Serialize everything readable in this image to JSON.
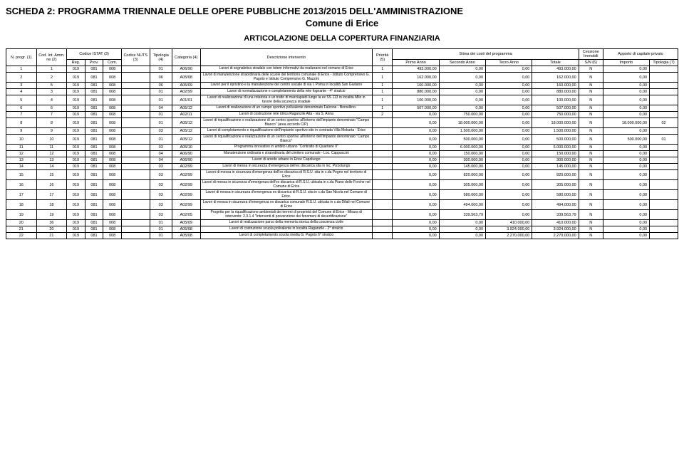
{
  "header": {
    "title1": "SCHEDA 2: PROGRAMMA TRIENNALE DELLE OPERE PUBBLICHE 2013/2015 DELL'AMMINISTRAZIONE",
    "title2": "Comune di Erice",
    "subtitle": "ARTICOLAZIONE DELLA COPERTURA FINANZIARIA"
  },
  "columns": {
    "nprogr": "N. progr. (1)",
    "codint": "Cod. Int. Amm. ne (2)",
    "istat": "Codice ISTAT (3)",
    "reg": "Reg.",
    "prov": "Prov.",
    "com": "Com.",
    "nuts": "Codice NUTS (3)",
    "tipologia": "Tipologia (4)",
    "categoria": "Categoria (4)",
    "descr": "Descrizione intervento",
    "priorita": "Priorità (5)",
    "stima": "Stima dei costi del programma",
    "primo": "Primo Anno",
    "secondo": "Secondo Anno",
    "terzo": "Terzo Anno",
    "totale": "Totale",
    "cessione": "Cessione Immobili",
    "sn": "S/N (6)",
    "apporto": "Apporto di capitale privato",
    "importo": "Importo",
    "tipfin": "Tipologia (7)"
  },
  "rows": [
    {
      "n": "1",
      "cod": "1",
      "reg": "019",
      "prov": "081",
      "com": "008",
      "nuts": "",
      "tip": "01",
      "cat": "A06/90",
      "desc": "Lavori di segnaletica stradale con totem informativi da realizzarsi nel comune di Erice",
      "pri": "1",
      "a1": "493.000,00",
      "a2": "0,00",
      "a3": "0,00",
      "tot": "493.000,00",
      "ces": "N",
      "imp": "0,00",
      "tf": ""
    },
    {
      "n": "2",
      "cod": "2",
      "reg": "019",
      "prov": "081",
      "com": "008",
      "nuts": "",
      "tip": "06",
      "cat": "A05/08",
      "desc": "Lavori di manutenzione straordinaria delle scuole del territorio comunale di Erice - Istituto Comprensivo G. Pagoto e Istituto Comprensivo G. Mazzini",
      "pri": "1",
      "a1": "162.000,00",
      "a2": "0,00",
      "a3": "0,00",
      "tot": "162.000,00",
      "ces": "N",
      "imp": "0,00",
      "tf": ""
    },
    {
      "n": "3",
      "cod": "5",
      "reg": "019",
      "prov": "081",
      "com": "008",
      "nuts": "",
      "tip": "06",
      "cat": "A05/09",
      "desc": "Lavori per il ripristino e la manutenzione del centro sociale di via I. Poma in località San Giuliano",
      "pri": "1",
      "a1": "160.000,00",
      "a2": "0,00",
      "a3": "0,00",
      "tot": "160.000,00",
      "ces": "N",
      "imp": "0,00",
      "tf": ""
    },
    {
      "n": "4",
      "cod": "3",
      "reg": "019",
      "prov": "081",
      "com": "008",
      "nuts": "",
      "tip": "01",
      "cat": "A02/99",
      "desc": "Lavori di normalizzazione e completamento della rete fognante - 4° stralcio",
      "pri": "1",
      "a1": "880.000,00",
      "a2": "0,00",
      "a3": "0,00",
      "tot": "880.000,00",
      "ces": "N",
      "imp": "0,00",
      "tf": ""
    },
    {
      "n": "5",
      "cod": "4",
      "reg": "019",
      "prov": "081",
      "com": "008",
      "nuts": "",
      "tip": "01",
      "cat": "A01/01",
      "desc": "Lavori di realizzazione di una rotatoria e un tratto di marciapiedi lungo la ex SS 113 in località Milo in favore della sicurezza stradale",
      "pri": "1",
      "a1": "100.000,00",
      "a2": "0,00",
      "a3": "0,00",
      "tot": "100.000,00",
      "ces": "N",
      "imp": "0,00",
      "tf": ""
    },
    {
      "n": "6",
      "cod": "6",
      "reg": "019",
      "prov": "081",
      "com": "008",
      "nuts": "",
      "tip": "04",
      "cat": "A05/12",
      "desc": "Lavori di realizzazione di un campo sportivo polivalente denominato Falcone - Borsellino.",
      "pri": "1",
      "a1": "507.000,00",
      "a2": "0,00",
      "a3": "0,00",
      "tot": "507.000,00",
      "ces": "N",
      "imp": "0,00",
      "tf": ""
    },
    {
      "n": "7",
      "cod": "7",
      "reg": "019",
      "prov": "081",
      "com": "008",
      "nuts": "",
      "tip": "01",
      "cat": "A02/11",
      "desc": "Lavori di costruzione rete idrica Raganzile Alta - via S. Anna",
      "pri": "2",
      "a1": "0,00",
      "a2": "750.000,00",
      "a3": "0,00",
      "tot": "750.000,00",
      "ces": "N",
      "imp": "0,00",
      "tf": ""
    },
    {
      "n": "8",
      "cod": "8",
      "reg": "019",
      "prov": "081",
      "com": "008",
      "nuts": "",
      "tip": "01",
      "cat": "A05/12",
      "desc": "Lavori di riqualificazione e realizzazione di un centro sportivo all'interno dell'impianto denominato \"Campo Bianco\" (area accordo CIP)",
      "pri": "",
      "a1": "0,00",
      "a2": "18.000.000,00",
      "a3": "0,00",
      "tot": "18.000.000,00",
      "ces": "N",
      "imp": "18.000.000,00",
      "tf": "02"
    },
    {
      "n": "9",
      "cod": "9",
      "reg": "019",
      "prov": "081",
      "com": "008",
      "nuts": "",
      "tip": "03",
      "cat": "A05/12",
      "desc": "Lavori di completamento e riqualificazione dell'impianto sportivo sito in contrada Villa Mokarta - Erice",
      "pri": "",
      "a1": "0,00",
      "a2": "1.500.000,00",
      "a3": "0,00",
      "tot": "1.500.000,00",
      "ces": "N",
      "imp": "0,00",
      "tf": ""
    },
    {
      "n": "10",
      "cod": "10",
      "reg": "019",
      "prov": "081",
      "com": "008",
      "nuts": "",
      "tip": "01",
      "cat": "A05/12",
      "desc": "Lavori di riqualificazione e realizzazione di un centro sportivo all'interno dell'impianto denominato \"Campo Bianco\"",
      "pri": "",
      "a1": "0,00",
      "a2": "500.000,00",
      "a3": "0,00",
      "tot": "500.000,00",
      "ces": "N",
      "imp": "500.000,00",
      "tf": "01"
    },
    {
      "n": "11",
      "cod": "11",
      "reg": "019",
      "prov": "081",
      "com": "008",
      "nuts": "",
      "tip": "03",
      "cat": "A05/10",
      "desc": "Programma innovativo in ambito urbano \"Contratto di Quartiere II\"",
      "pri": "",
      "a1": "0,00",
      "a2": "6.000.000,00",
      "a3": "0,00",
      "tot": "6.000.000,00",
      "ces": "N",
      "imp": "0,00",
      "tf": ""
    },
    {
      "n": "12",
      "cod": "12",
      "reg": "019",
      "prov": "081",
      "com": "008",
      "nuts": "",
      "tip": "04",
      "cat": "A06/90",
      "desc": "Manutenzione ordinaria e straordinaria del cimitero comunale - Loc. Cappuccini",
      "pri": "",
      "a1": "0,00",
      "a2": "150.000,00",
      "a3": "0,00",
      "tot": "150.000,00",
      "ces": "N",
      "imp": "0,00",
      "tf": ""
    },
    {
      "n": "13",
      "cod": "13",
      "reg": "019",
      "prov": "081",
      "com": "008",
      "nuts": "",
      "tip": "04",
      "cat": "A06/90",
      "desc": "Lavori di arredo urbano in Erice Capoluogo",
      "pri": "",
      "a1": "0,00",
      "a2": "300.000,00",
      "a3": "0,00",
      "tot": "300.000,00",
      "ces": "N",
      "imp": "0,00",
      "tf": ""
    },
    {
      "n": "14",
      "cod": "14",
      "reg": "019",
      "prov": "081",
      "com": "008",
      "nuts": "",
      "tip": "03",
      "cat": "A02/99",
      "desc": "Lavori di messa in sicurezza d'emergenza dell'ex discarica sita in loc. Pizzolungo",
      "pri": "",
      "a1": "0,00",
      "a2": "145.000,00",
      "a3": "0,00",
      "tot": "145.000,00",
      "ces": "N",
      "imp": "0,00",
      "tf": ""
    },
    {
      "n": "15",
      "cod": "15",
      "reg": "019",
      "prov": "081",
      "com": "008",
      "nuts": "",
      "tip": "03",
      "cat": "A02/99",
      "desc": "Lavori di messa in sicurezza d'emergenza dell'ex discarica di R.S.U. sita in c.da Pegno nel territorio di Erice",
      "pri": "",
      "a1": "0,00",
      "a2": "820.000,00",
      "a3": "0,00",
      "tot": "820.000,00",
      "ces": "N",
      "imp": "0,00",
      "tf": ""
    },
    {
      "n": "16",
      "cod": "16",
      "reg": "019",
      "prov": "081",
      "com": "008",
      "nuts": "",
      "tip": "03",
      "cat": "A02/99",
      "desc": "Lavori di messa in sicurezza d'emergenza dell'ex discarica di R.S.U. ubicata in c.da Piano delle Forche nel Comune di Erice",
      "pri": "",
      "a1": "0,00",
      "a2": "305.000,00",
      "a3": "0,00",
      "tot": "305.000,00",
      "ces": "N",
      "imp": "0,00",
      "tf": ""
    },
    {
      "n": "17",
      "cod": "17",
      "reg": "019",
      "prov": "081",
      "com": "008",
      "nuts": "",
      "tip": "03",
      "cat": "A02/99",
      "desc": "Lavori di messa in sicurezza d'emergenza ex discarica di R.S.U. sita in c.da San Nicola nel Comune di Erice.",
      "pri": "",
      "a1": "0,00",
      "a2": "580.000,00",
      "a3": "0,00",
      "tot": "580.000,00",
      "ces": "N",
      "imp": "0,00",
      "tf": ""
    },
    {
      "n": "18",
      "cod": "18",
      "reg": "019",
      "prov": "081",
      "com": "008",
      "nuts": "",
      "tip": "03",
      "cat": "A02/99",
      "desc": "Lavori di messa in sicurezza d'emergenza ex discarica comunale R.S.U. ubicata in c.da Difali nel Comune di Erice",
      "pri": "",
      "a1": "0,00",
      "a2": "494.000,00",
      "a3": "0,00",
      "tot": "494.000,00",
      "ces": "N",
      "imp": "0,00",
      "tf": ""
    },
    {
      "n": "19",
      "cod": "19",
      "reg": "019",
      "prov": "081",
      "com": "008",
      "nuts": "",
      "tip": "03",
      "cat": "A02/05",
      "desc": "Progetto per la riqualificazione ambientali dei terreni di proprietà del Comune di Erice - Misura di intervento: 2.3.1.4 \"Interventi di prevenzione dei fenomeni di desertificazione\"",
      "pri": "",
      "a1": "0,00",
      "a2": "339.563,79",
      "a3": "0,00",
      "tot": "339.563,79",
      "ces": "N",
      "imp": "0,00",
      "tf": ""
    },
    {
      "n": "20",
      "cod": "36",
      "reg": "019",
      "prov": "081",
      "com": "008",
      "nuts": "",
      "tip": "01",
      "cat": "A05/09",
      "desc": "Lavori di realizzazione parco della memoria storica della coscienza civile",
      "pri": "",
      "a1": "0,00",
      "a2": "0,00",
      "a3": "410.000,00",
      "tot": "410.000,00",
      "ces": "N",
      "imp": "0,00",
      "tf": ""
    },
    {
      "n": "21",
      "cod": "20",
      "reg": "019",
      "prov": "081",
      "com": "008",
      "nuts": "",
      "tip": "01",
      "cat": "A05/08",
      "desc": "Lavori di costruzione scuola polivalente in località Raganzile - 2° stralcio",
      "pri": "",
      "a1": "0,00",
      "a2": "0,00",
      "a3": "3.924.000,00",
      "tot": "3.924.000,00",
      "ces": "N",
      "imp": "0,00",
      "tf": ""
    },
    {
      "n": "22",
      "cod": "21",
      "reg": "019",
      "prov": "081",
      "com": "008",
      "nuts": "",
      "tip": "01",
      "cat": "A05/08",
      "desc": "Lavori di completamento scuola media G. Pagoto 6° stralcio",
      "pri": "",
      "a1": "0,00",
      "a2": "0,00",
      "a3": "2.270.000,00",
      "tot": "2.270.000,00",
      "ces": "N",
      "imp": "0,00",
      "tf": ""
    }
  ]
}
